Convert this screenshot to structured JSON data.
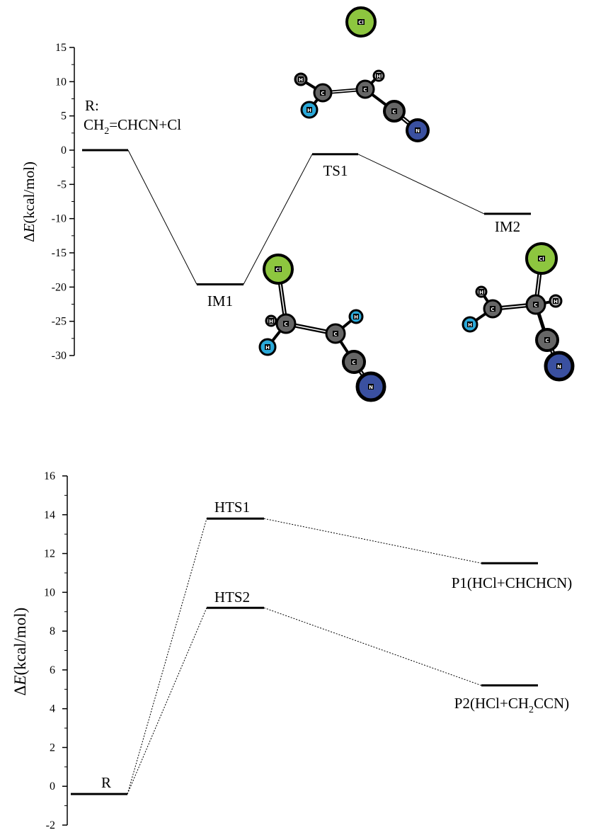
{
  "chart_data": [
    {
      "type": "energy-profile",
      "ylabel": "ΔE(kcal/mol)",
      "ylim": [
        -30,
        15
      ],
      "yticks": [
        15,
        10,
        5,
        0,
        -5,
        -10,
        -15,
        -20,
        -25,
        -30
      ],
      "levels": [
        {
          "id": "R",
          "label_line1": "R:",
          "label_line2": "CH2=CHCN+Cl",
          "value": 0
        },
        {
          "id": "IM1",
          "label": "IM1",
          "value": -19.6
        },
        {
          "id": "TS1",
          "label": "TS1",
          "value": -0.6
        },
        {
          "id": "IM2",
          "label": "IM2",
          "value": -9.3
        }
      ],
      "connections": [
        [
          "R",
          "IM1"
        ],
        [
          "IM1",
          "TS1"
        ],
        [
          "TS1",
          "IM2"
        ]
      ],
      "connector_style": "solid",
      "structures": [
        {
          "name": "TS1",
          "atoms": [
            "Cl",
            "C",
            "C",
            "C",
            "N",
            "H",
            "H",
            "H"
          ]
        },
        {
          "name": "IM1",
          "atoms": [
            "Cl",
            "C",
            "C",
            "C",
            "N",
            "H",
            "H",
            "H"
          ]
        },
        {
          "name": "IM2",
          "atoms": [
            "Cl",
            "C",
            "C",
            "C",
            "N",
            "H",
            "H",
            "H"
          ]
        }
      ]
    },
    {
      "type": "energy-profile",
      "ylabel": "ΔE(kcal/mol)",
      "ylim": [
        -2,
        16
      ],
      "yticks": [
        16,
        14,
        12,
        10,
        8,
        6,
        4,
        2,
        0,
        -2
      ],
      "levels": [
        {
          "id": "R",
          "label": "R",
          "value": -0.4
        },
        {
          "id": "HTS1",
          "label": "HTS1",
          "value": 13.8
        },
        {
          "id": "HTS2",
          "label": "HTS2",
          "value": 9.2
        },
        {
          "id": "P1",
          "label": "P1(HCl+CHCHCN)",
          "value": 11.5
        },
        {
          "id": "P2",
          "label_pre": "P2(HCl+CH",
          "label_sub": "2",
          "label_post": "CCN)",
          "value": 5.2
        }
      ],
      "connections": [
        [
          "R",
          "HTS1"
        ],
        [
          "R",
          "HTS2"
        ],
        [
          "HTS1",
          "P1"
        ],
        [
          "HTS2",
          "P2"
        ]
      ],
      "connector_style": "dashed"
    }
  ]
}
